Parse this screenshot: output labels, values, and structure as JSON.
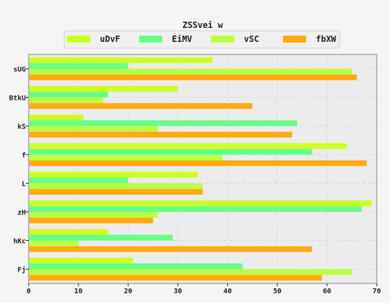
{
  "chart_data": {
    "type": "bar",
    "orientation": "horizontal",
    "title": "ZSSvei w",
    "xlabel": "",
    "ylabel": "",
    "xlim": [
      0,
      70
    ],
    "xticks": [
      0,
      10,
      20,
      30,
      40,
      50,
      60,
      70
    ],
    "grid": true,
    "legend_position": "top-center",
    "categories": [
      "sUG",
      "BtkU",
      "kS",
      "f",
      "L",
      "zH",
      "hKc",
      "Fj"
    ],
    "series": [
      {
        "name": "uDvF",
        "color": "#ccff22",
        "values": [
          37,
          30,
          11,
          64,
          34,
          69,
          16,
          21
        ]
      },
      {
        "name": "EiMV",
        "color": "#66ff88",
        "values": [
          20,
          16,
          54,
          57,
          20,
          67,
          29,
          43
        ]
      },
      {
        "name": "vSC",
        "color": "#bbff44",
        "values": [
          65,
          15,
          26,
          39,
          35,
          26,
          10,
          65
        ]
      },
      {
        "name": "fbXW",
        "color": "#ffaa11",
        "values": [
          66,
          45,
          53,
          68,
          35,
          25,
          57,
          59
        ]
      }
    ]
  }
}
